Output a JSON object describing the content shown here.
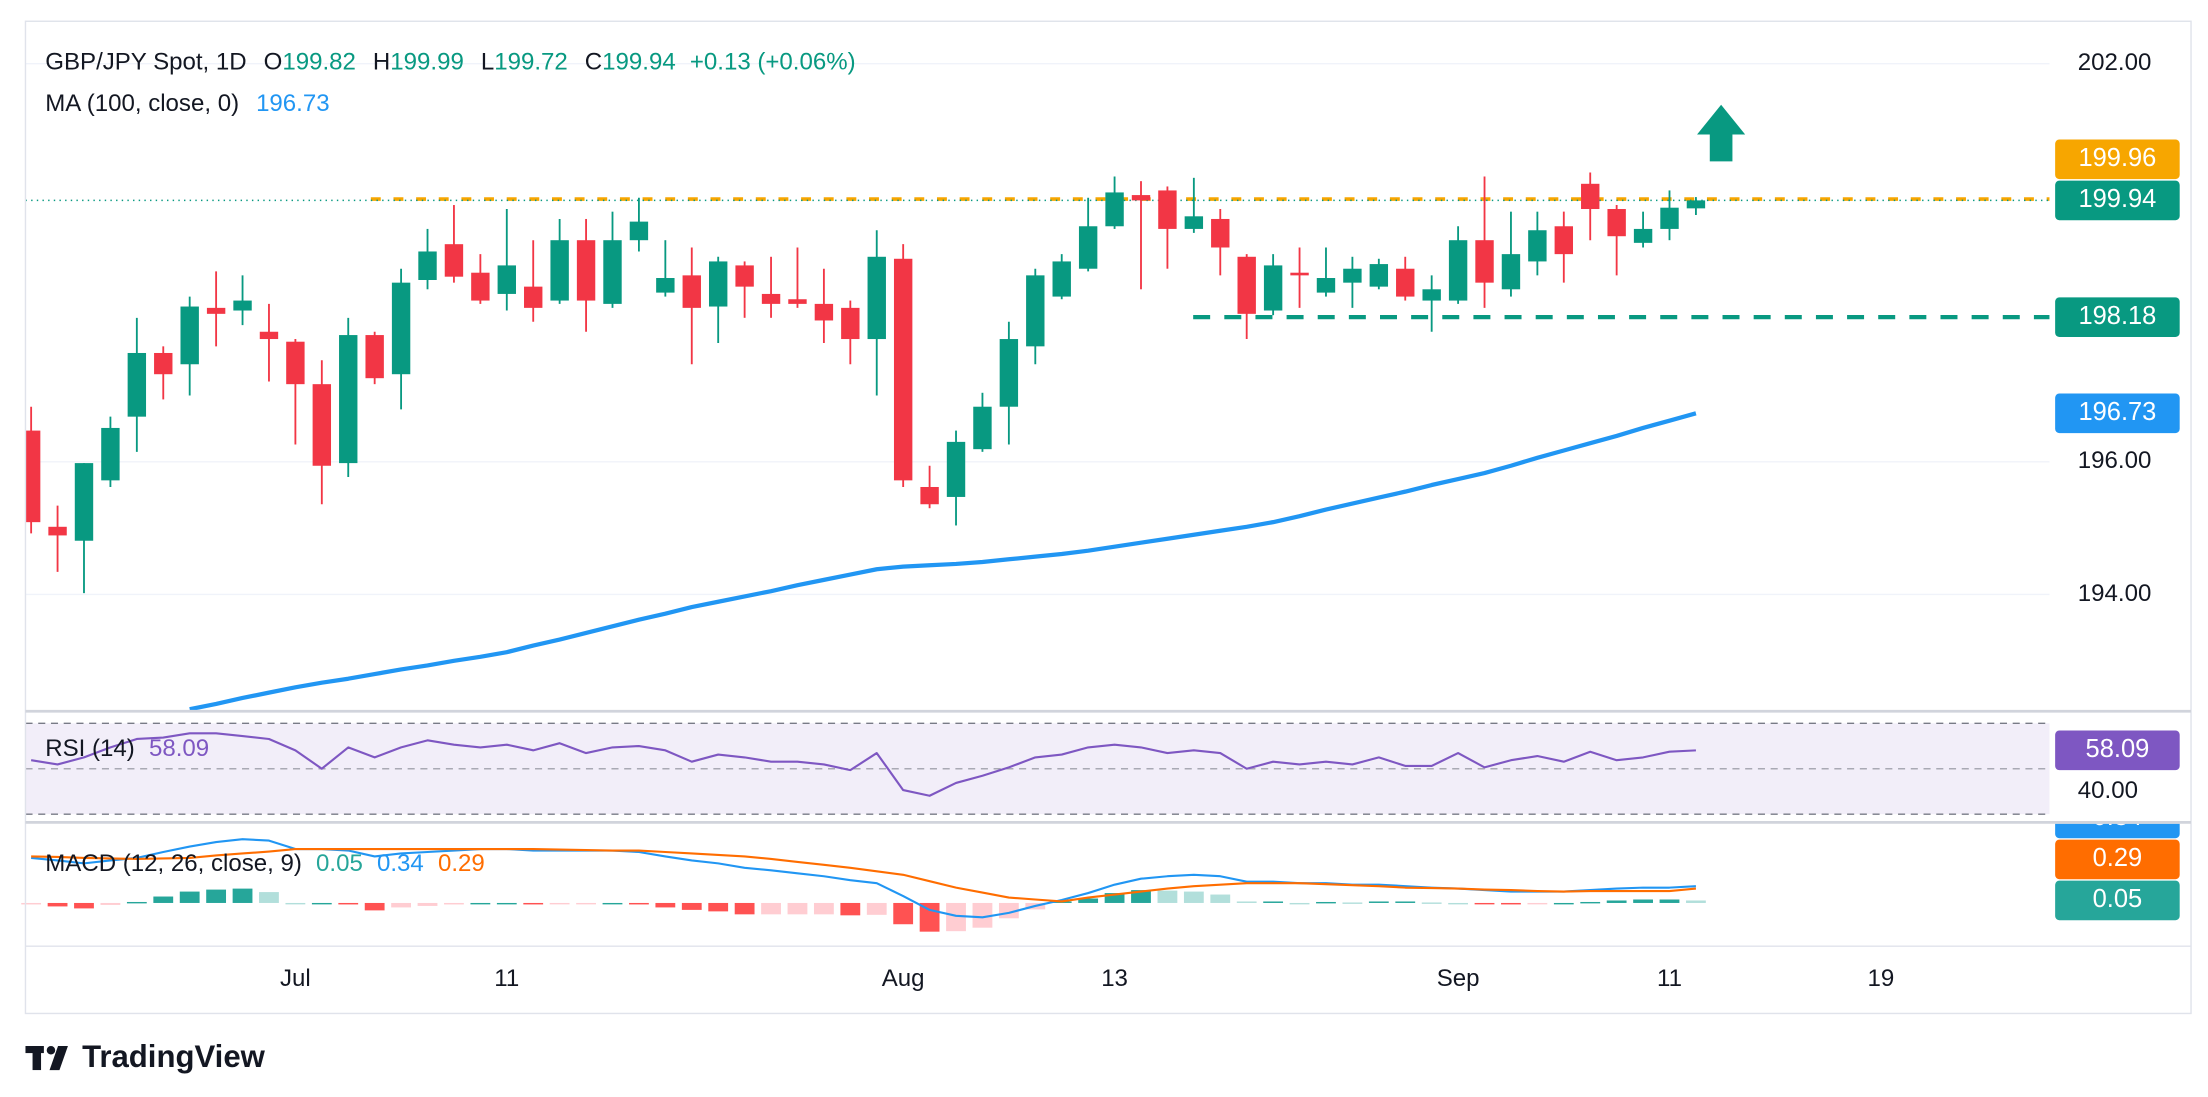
{
  "chart_data": {
    "type": "candlestick",
    "legend": {
      "title": "GBP/JPY Spot, 1D",
      "o": "O",
      "h": "H",
      "l": "L",
      "c": "C",
      "change": "+0.13 (+0.06%)"
    },
    "brand": "TradingView",
    "up_color": "#089981",
    "down_color": "#f23645",
    "categories": [
      null,
      null,
      null,
      null,
      null,
      null,
      null,
      null,
      null,
      null,
      "Jul",
      null,
      null,
      null,
      null,
      null,
      null,
      null,
      "11",
      null,
      null,
      null,
      null,
      null,
      null,
      null,
      null,
      null,
      null,
      null,
      null,
      null,
      null,
      "Aug",
      null,
      null,
      null,
      null,
      null,
      null,
      null,
      "13",
      null,
      null,
      null,
      null,
      null,
      null,
      null,
      null,
      null,
      null,
      null,
      null,
      "Sep",
      null,
      null,
      null,
      null,
      null,
      null,
      null,
      "11",
      null,
      null,
      null,
      null,
      null,
      null,
      null,
      "19",
      null,
      null,
      null,
      null,
      null,
      null
    ],
    "open": [
      196.47,
      195.02,
      194.81,
      195.72,
      196.68,
      197.64,
      197.47,
      198.32,
      198.28,
      197.96,
      197.81,
      197.17,
      195.98,
      197.91,
      197.32,
      198.74,
      199.28,
      198.85,
      198.53,
      198.64,
      198.43,
      199.34,
      198.38,
      199.34,
      198.55,
      198.81,
      198.34,
      198.96,
      198.53,
      198.45,
      198.38,
      198.32,
      197.85,
      199.06,
      195.62,
      195.47,
      196.19,
      196.83,
      197.74,
      198.49,
      198.91,
      199.55,
      200.02,
      200.09,
      199.51,
      199.66,
      199.09,
      198.28,
      198.85,
      198.55,
      198.7,
      198.64,
      198.91,
      198.43,
      198.43,
      199.34,
      198.6,
      199.02,
      199.55,
      200.19,
      199.81,
      199.3,
      199.51,
      199.82,
      null,
      null,
      null,
      null,
      null,
      null,
      null,
      null,
      null,
      null,
      null,
      null,
      null
    ],
    "high": [
      196.83,
      195.34,
      195.98,
      196.68,
      198.17,
      197.74,
      198.49,
      198.87,
      198.81,
      198.38,
      197.85,
      197.53,
      198.17,
      197.96,
      198.91,
      199.51,
      199.87,
      199.13,
      199.81,
      199.34,
      199.66,
      199.66,
      199.77,
      199.98,
      199.34,
      199.23,
      199.09,
      199.02,
      199.09,
      199.23,
      198.91,
      198.43,
      199.49,
      199.28,
      195.94,
      196.47,
      197.04,
      198.11,
      198.91,
      199.13,
      199.98,
      200.3,
      200.23,
      200.15,
      200.28,
      199.81,
      199.13,
      199.13,
      199.23,
      199.23,
      199.09,
      199.06,
      199.09,
      198.81,
      199.55,
      200.3,
      199.77,
      199.77,
      199.77,
      200.36,
      199.87,
      199.77,
      200.09,
      199.99,
      null,
      null,
      null,
      null,
      null,
      null,
      null,
      null,
      null,
      null,
      null,
      null,
      null
    ],
    "low": [
      194.92,
      194.34,
      194.02,
      195.62,
      196.15,
      196.94,
      197.0,
      197.74,
      198.06,
      197.21,
      196.26,
      195.36,
      195.77,
      197.17,
      196.79,
      198.6,
      198.7,
      198.38,
      198.28,
      198.11,
      198.38,
      197.96,
      198.32,
      199.17,
      198.49,
      197.47,
      197.79,
      198.17,
      198.17,
      198.32,
      197.79,
      197.47,
      197.0,
      195.62,
      195.3,
      195.04,
      196.15,
      196.26,
      197.47,
      198.45,
      198.87,
      199.51,
      198.6,
      198.91,
      199.45,
      198.81,
      197.85,
      198.21,
      198.32,
      198.49,
      198.32,
      198.6,
      198.43,
      197.96,
      198.38,
      198.32,
      198.49,
      198.81,
      198.7,
      199.34,
      198.81,
      199.23,
      199.34,
      199.72,
      null,
      null,
      null,
      null,
      null,
      null,
      null,
      null,
      null,
      null,
      null,
      null,
      null
    ],
    "close": [
      195.09,
      194.89,
      195.98,
      196.51,
      197.64,
      197.32,
      198.34,
      198.23,
      198.43,
      197.85,
      197.17,
      195.94,
      197.91,
      197.26,
      198.7,
      199.17,
      198.79,
      198.43,
      198.96,
      198.32,
      199.34,
      198.43,
      199.34,
      199.62,
      198.77,
      198.32,
      199.02,
      198.64,
      198.38,
      198.38,
      198.13,
      197.85,
      199.09,
      195.72,
      195.36,
      196.3,
      196.83,
      197.85,
      198.81,
      199.02,
      199.55,
      200.06,
      199.94,
      199.51,
      199.7,
      199.23,
      198.23,
      198.96,
      198.81,
      198.77,
      198.91,
      198.98,
      198.49,
      198.6,
      199.34,
      198.7,
      199.13,
      199.49,
      199.13,
      199.81,
      199.4,
      199.51,
      199.83,
      199.94,
      null,
      null,
      null,
      null,
      null,
      null,
      null,
      null,
      null,
      null,
      null,
      null,
      null
    ],
    "ylim": [
      192.25,
      202.64
    ],
    "yticks": [
      {
        "value": 194,
        "label": "194.00"
      },
      {
        "value": 196,
        "label": "196.00"
      },
      {
        "value": 202,
        "label": "202.00"
      }
    ],
    "grid": true,
    "ma": {
      "name": "MA (100, close, 0)",
      "color": "#2196f3",
      "values": [
        null,
        null,
        null,
        null,
        null,
        null,
        192.27,
        192.35,
        192.44,
        192.52,
        192.6,
        192.67,
        192.73,
        192.8,
        192.87,
        192.93,
        193.0,
        193.06,
        193.13,
        193.23,
        193.32,
        193.42,
        193.52,
        193.62,
        193.71,
        193.81,
        193.89,
        193.97,
        194.05,
        194.14,
        194.22,
        194.3,
        194.38,
        194.42,
        194.44,
        194.46,
        194.49,
        194.53,
        194.57,
        194.61,
        194.66,
        194.72,
        194.78,
        194.84,
        194.9,
        194.96,
        195.02,
        195.09,
        195.18,
        195.28,
        195.37,
        195.46,
        195.55,
        195.65,
        195.74,
        195.83,
        195.94,
        196.06,
        196.17,
        196.28,
        196.39,
        196.51,
        196.62,
        196.73,
        null,
        null,
        null,
        null,
        null,
        null,
        null,
        null,
        null,
        null,
        null,
        null,
        null
      ]
    },
    "levels": [
      {
        "value": 199.96,
        "color": "#f7a600"
      },
      {
        "value": 198.18,
        "color": "#089981"
      }
    ],
    "rsi": {
      "name": "RSI (14)",
      "color": "#7e57c2",
      "ylim": [
        27,
        75
      ],
      "bands": [
        70,
        50,
        30
      ],
      "yticks": [
        {
          "value": 40,
          "label": "40.00"
        }
      ],
      "values": [
        53.75,
        51.9,
        55,
        59.4,
        63.1,
        63.75,
        65.6,
        65.6,
        64.4,
        63.1,
        58.1,
        50,
        59.4,
        55,
        59.4,
        62.5,
        60.6,
        59.4,
        60.6,
        58.1,
        61.25,
        56.9,
        59.4,
        60,
        58.1,
        53.1,
        56.25,
        55,
        53.1,
        53.1,
        51.9,
        49.4,
        56.9,
        40.6,
        38.1,
        43.75,
        46.9,
        50.6,
        55,
        56.25,
        59.4,
        60.6,
        59.4,
        56.9,
        58.1,
        56.9,
        50,
        53.1,
        51.9,
        53.1,
        51.9,
        55,
        51.25,
        51.25,
        56.9,
        50.6,
        53.75,
        55.6,
        53.1,
        57.5,
        53.75,
        55,
        57.5,
        58.09,
        null,
        null,
        null,
        null,
        null,
        null,
        null,
        null,
        null,
        null,
        null,
        null,
        null
      ]
    },
    "macd": {
      "name": "MACD (12, 26, close, 9)",
      "ylim": [
        -0.86,
        1.6
      ],
      "macd": {
        "color": "#2196f3",
        "values": [
          0.91,
          0.86,
          0.8,
          0.86,
          0.91,
          1.03,
          1.14,
          1.23,
          1.29,
          1.26,
          1.09,
          1.09,
          1.06,
          0.94,
          1.0,
          1.03,
          1.06,
          1.09,
          1.09,
          1.06,
          1.06,
          1.06,
          1.06,
          1.03,
          0.94,
          0.86,
          0.8,
          0.71,
          0.66,
          0.6,
          0.54,
          0.46,
          0.4,
          0.14,
          -0.14,
          -0.26,
          -0.29,
          -0.2,
          -0.06,
          0.06,
          0.2,
          0.37,
          0.49,
          0.54,
          0.57,
          0.54,
          0.43,
          0.43,
          0.4,
          0.4,
          0.37,
          0.37,
          0.34,
          0.31,
          0.29,
          0.26,
          0.23,
          0.23,
          0.23,
          0.26,
          0.29,
          0.31,
          0.31,
          0.34,
          null,
          null,
          null,
          null,
          null,
          null,
          null,
          null,
          null,
          null,
          null,
          null,
          null
        ]
      },
      "signal": {
        "color": "#ff6d00",
        "values": [
          0.94,
          0.93,
          0.91,
          0.9,
          0.89,
          0.9,
          0.91,
          0.96,
          1.0,
          1.04,
          1.09,
          1.09,
          1.09,
          1.09,
          1.09,
          1.09,
          1.09,
          1.09,
          1.09,
          1.09,
          1.08,
          1.07,
          1.06,
          1.06,
          1.03,
          1.0,
          0.97,
          0.94,
          0.89,
          0.83,
          0.77,
          0.71,
          0.64,
          0.57,
          0.44,
          0.31,
          0.21,
          0.11,
          0.07,
          0.03,
          0.11,
          0.17,
          0.23,
          0.29,
          0.34,
          0.37,
          0.4,
          0.4,
          0.4,
          0.38,
          0.36,
          0.34,
          0.31,
          0.3,
          0.29,
          0.27,
          0.26,
          0.24,
          0.23,
          0.24,
          0.24,
          0.24,
          0.24,
          0.29,
          null,
          null,
          null,
          null,
          null,
          null,
          null,
          null,
          null,
          null,
          null,
          null,
          null
        ]
      },
      "histogram": {
        "color": "#26a69a",
        "values": [
          -0.03,
          -0.07,
          -0.11,
          -0.04,
          0.02,
          0.13,
          0.23,
          0.27,
          0.29,
          0.22,
          0.0,
          0.0,
          -0.03,
          -0.15,
          -0.09,
          -0.06,
          -0.03,
          0.0,
          0.0,
          -0.03,
          -0.02,
          -0.01,
          0.0,
          -0.03,
          -0.09,
          -0.14,
          -0.17,
          -0.23,
          -0.23,
          -0.23,
          -0.23,
          -0.25,
          -0.24,
          -0.43,
          -0.58,
          -0.57,
          -0.5,
          -0.31,
          -0.13,
          0.03,
          0.09,
          0.2,
          0.26,
          0.25,
          0.23,
          0.17,
          0.03,
          0.03,
          0.0,
          0.02,
          0.01,
          0.03,
          0.03,
          0.01,
          0.0,
          -0.01,
          -0.03,
          -0.01,
          0.0,
          0.02,
          0.05,
          0.07,
          0.07,
          0.05,
          null,
          null,
          null,
          null,
          null,
          null,
          null,
          null,
          null,
          null,
          null,
          null,
          null
        ]
      }
    }
  }
}
